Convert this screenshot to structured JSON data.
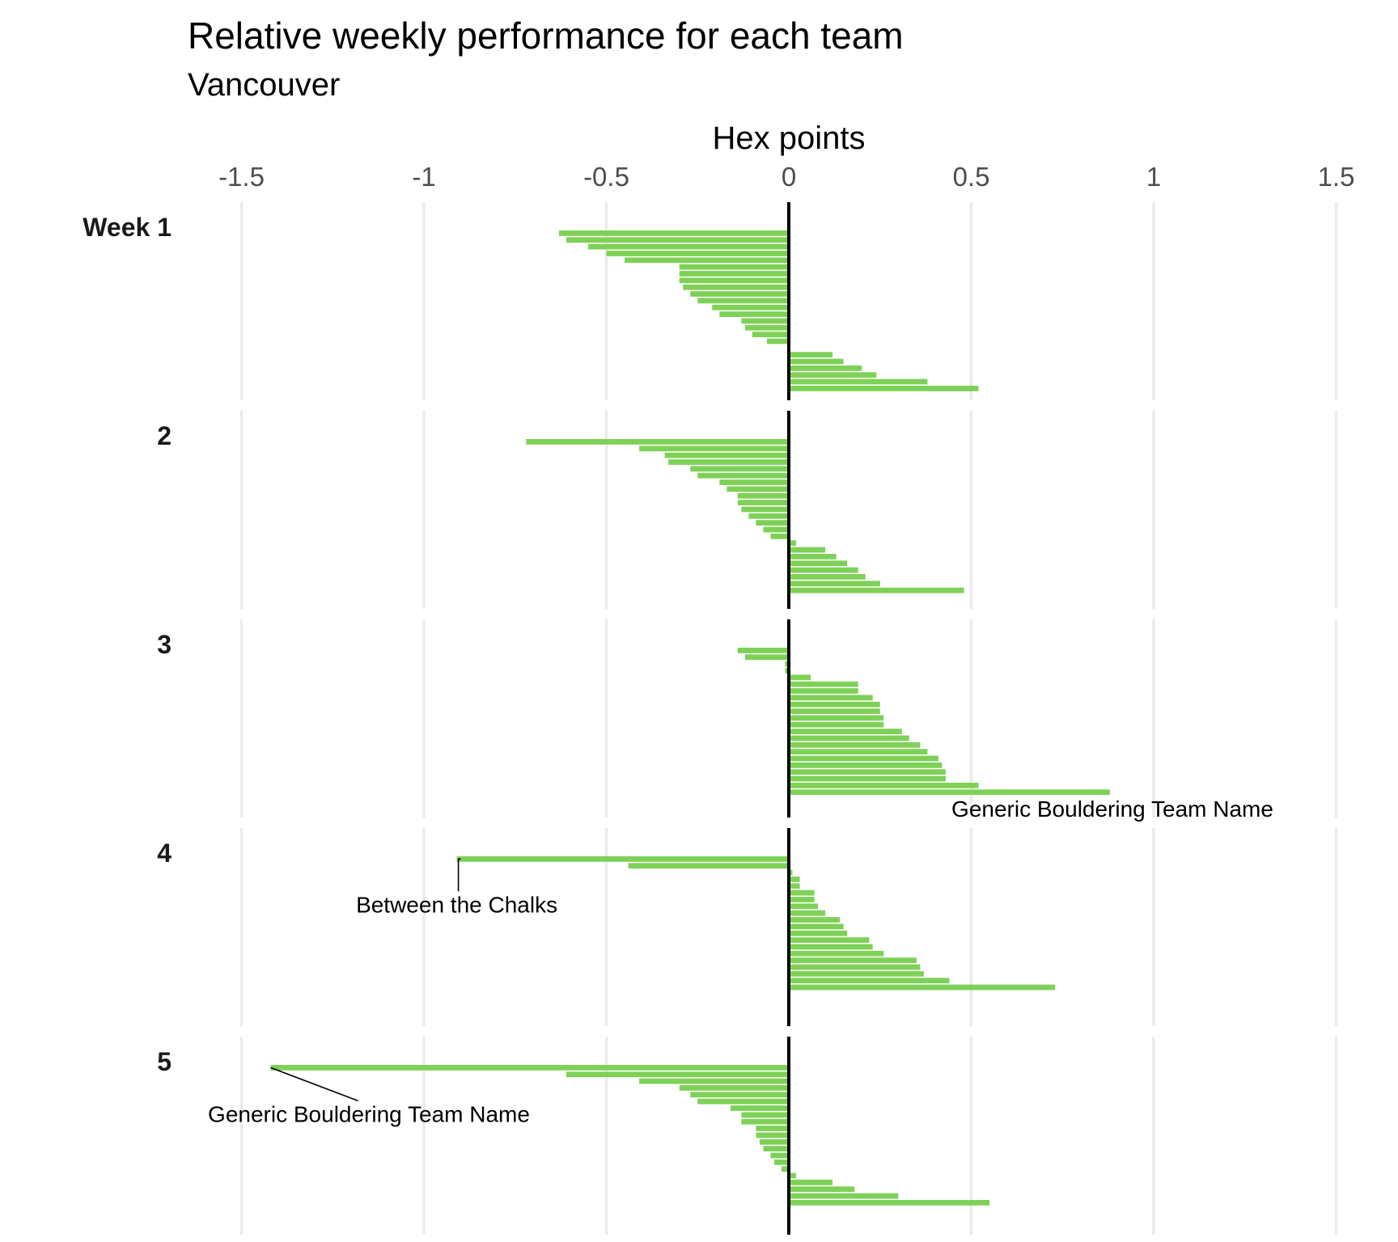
{
  "chart_data": {
    "type": "bar",
    "orientation": "horizontal",
    "title": "Relative weekly performance for each team",
    "subtitle": "Vancouver",
    "xlabel": "Hex points",
    "xlim": [
      -1.5,
      1.5
    ],
    "xticks": [
      "-1.5",
      "-1",
      "-0.5",
      "0",
      "0.5",
      "1",
      "1.5"
    ],
    "xtick_values": [
      -1.5,
      -1,
      -0.5,
      0,
      0.5,
      1,
      1.5
    ],
    "bar_color": "#7ed157",
    "grid": true,
    "x_axis_position": "top",
    "panels": [
      {
        "label": "Week 1",
        "values": [
          -0.63,
          -0.61,
          -0.55,
          -0.5,
          -0.45,
          -0.3,
          -0.3,
          -0.3,
          -0.29,
          -0.27,
          -0.25,
          -0.21,
          -0.19,
          -0.13,
          -0.12,
          -0.1,
          -0.06,
          0.0,
          0.12,
          0.15,
          0.2,
          0.24,
          0.38,
          0.52
        ]
      },
      {
        "label": "2",
        "values": [
          -0.72,
          -0.41,
          -0.34,
          -0.33,
          -0.27,
          -0.25,
          -0.19,
          -0.17,
          -0.14,
          -0.14,
          -0.13,
          -0.11,
          -0.09,
          -0.07,
          -0.05,
          0.02,
          0.1,
          0.13,
          0.16,
          0.19,
          0.21,
          0.25,
          0.48
        ]
      },
      {
        "label": "3",
        "values": [
          -0.14,
          -0.12,
          -0.01,
          -0.01,
          0.06,
          0.19,
          0.19,
          0.23,
          0.25,
          0.25,
          0.26,
          0.26,
          0.31,
          0.33,
          0.36,
          0.38,
          0.41,
          0.42,
          0.43,
          0.43,
          0.52,
          0.88
        ]
      },
      {
        "label": "4",
        "values": [
          -0.91,
          -0.44,
          0.01,
          0.03,
          0.03,
          0.07,
          0.07,
          0.08,
          0.1,
          0.14,
          0.15,
          0.16,
          0.22,
          0.23,
          0.26,
          0.35,
          0.36,
          0.37,
          0.44,
          0.73
        ]
      },
      {
        "label": "5",
        "values": [
          -1.42,
          -0.61,
          -0.41,
          -0.3,
          -0.27,
          -0.25,
          -0.16,
          -0.13,
          -0.13,
          -0.09,
          -0.09,
          -0.08,
          -0.07,
          -0.05,
          -0.04,
          -0.02,
          0.02,
          0.12,
          0.18,
          0.3,
          0.55
        ]
      }
    ],
    "annotations": [
      {
        "panel": 2,
        "text": "Generic Bouldering Team Name",
        "bar_index": 21
      },
      {
        "panel": 3,
        "text": "Between the Chalks",
        "bar_index": 0
      },
      {
        "panel": 4,
        "text": "Generic Bouldering Team Name",
        "bar_index": 0
      }
    ]
  }
}
